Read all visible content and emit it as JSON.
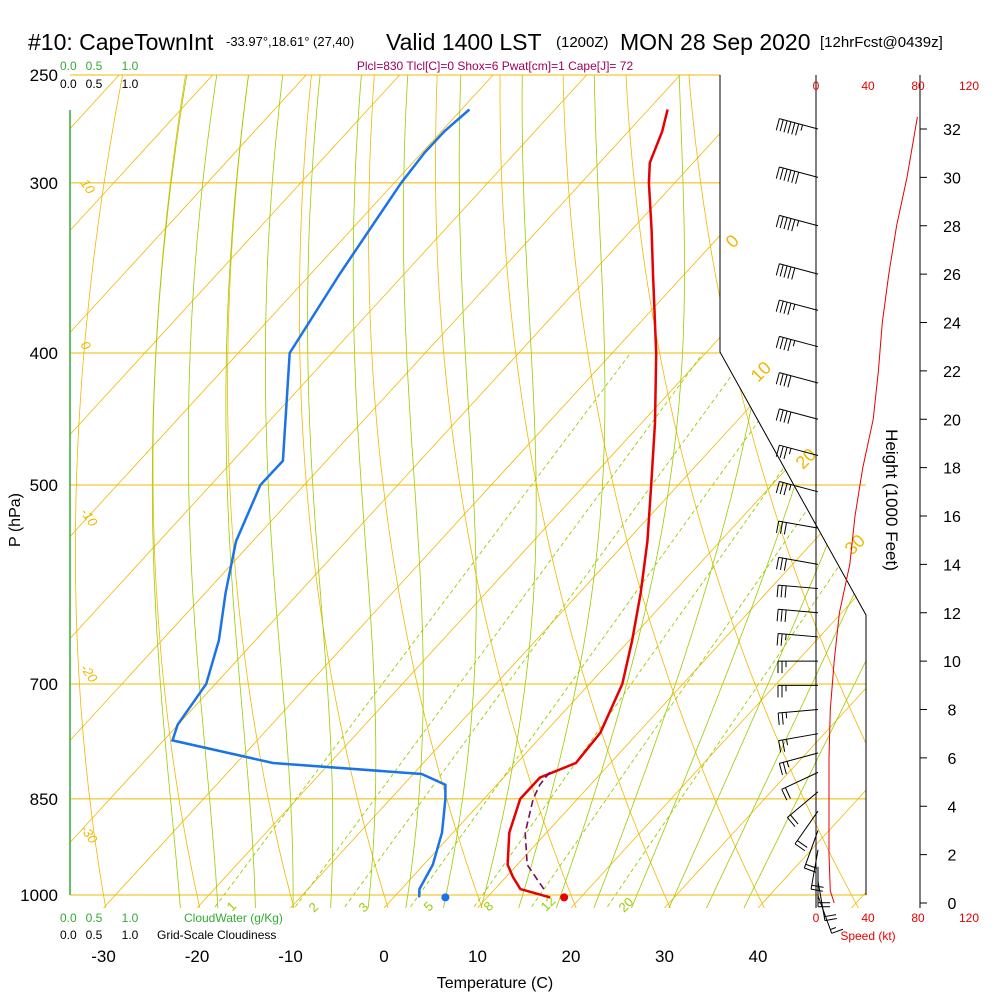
{
  "header": {
    "station": "#10: CapeTownInt",
    "coords": "-33.97°,18.61° (27,40)",
    "valid": "Valid 1400 LST",
    "utc": "(1200Z)",
    "date": "MON 28 Sep 2020",
    "forecast": "[12hrFcst@0439z]",
    "params": "Plcl=830 Tlcl[C]=0 Shox=6 Pwat[cm]=1 Cape[J]= 72"
  },
  "colors": {
    "temperature": "#e60000",
    "dewpoint": "#1a73e8",
    "parcel": "#7a0a5a",
    "isobar": "#f0b800",
    "dry_adiabat": "#f0b800",
    "moist_adiabat": "#99cc00",
    "mixing_ratio": "#99cc00",
    "cloud": "#33aa33",
    "speed": "#e60000",
    "params": "#a0005a"
  },
  "chart_data": {
    "type": "skew-t",
    "ylabel": "P (hPa)",
    "xlabel": "Temperature (C)",
    "height_axis_label": "Height (1000 Feet)",
    "speed_axis_label": "Speed (kt)",
    "y_scale": "log",
    "isobars_hpa": [
      250,
      300,
      400,
      500,
      700,
      850,
      1000
    ],
    "pressure_ticks": [
      "250",
      "300",
      "400",
      "500",
      "700",
      "850",
      "1000"
    ],
    "temp_ticks": [
      -30,
      -20,
      -10,
      0,
      10,
      20,
      30,
      40
    ],
    "height_ticks_kft": [
      0,
      2,
      4,
      6,
      8,
      10,
      12,
      14,
      16,
      18,
      20,
      22,
      24,
      26,
      28,
      30,
      32
    ],
    "speed_ticks_kt": [
      "0",
      "40",
      "80",
      "120"
    ],
    "cloud_scale": [
      "0.0",
      "0.5",
      "1.0"
    ],
    "cloud_scale_labels": {
      "cloud_water": "CloudWater (g/Kg)",
      "grid_cloud": "Grid-Scale Cloudiness"
    },
    "grid_cloud_scale": [
      "0.0",
      "0.5",
      "1.0"
    ],
    "dry_adiabat_labels": [
      "10",
      "0",
      "-10",
      "-20",
      "-30"
    ],
    "moist_adiabat_labels": [
      "0",
      "10",
      "20",
      "30"
    ],
    "mixing_ratio_labels": [
      "1",
      "2",
      "3",
      "5",
      "8",
      "12",
      "20"
    ],
    "temperature_profile": [
      {
        "p": 1004,
        "t": 18.0
      },
      {
        "p": 990,
        "t": 14.0
      },
      {
        "p": 970,
        "t": 12.0
      },
      {
        "p": 950,
        "t": 10.2
      },
      {
        "p": 900,
        "t": 7.2
      },
      {
        "p": 850,
        "t": 5.0
      },
      {
        "p": 820,
        "t": 5.0
      },
      {
        "p": 800,
        "t": 7.4
      },
      {
        "p": 760,
        "t": 7.0
      },
      {
        "p": 700,
        "t": 4.5
      },
      {
        "p": 650,
        "t": 1.2
      },
      {
        "p": 600,
        "t": -2.6
      },
      {
        "p": 550,
        "t": -7.0
      },
      {
        "p": 500,
        "t": -12.2
      },
      {
        "p": 450,
        "t": -18.0
      },
      {
        "p": 400,
        "t": -24.8
      },
      {
        "p": 350,
        "t": -33.0
      },
      {
        "p": 325,
        "t": -37.5
      },
      {
        "p": 300,
        "t": -42.5
      },
      {
        "p": 290,
        "t": -44.4
      },
      {
        "p": 275,
        "t": -46.2
      },
      {
        "p": 265,
        "t": -47.8
      }
    ],
    "dewpoint_profile": [
      {
        "p": 1004,
        "td": 4.0
      },
      {
        "p": 990,
        "td": 3.2
      },
      {
        "p": 950,
        "td": 2.2
      },
      {
        "p": 900,
        "td": 0.0
      },
      {
        "p": 850,
        "td": -3.0
      },
      {
        "p": 830,
        "td": -4.4
      },
      {
        "p": 815,
        "td": -8.0
      },
      {
        "p": 800,
        "td": -25.0
      },
      {
        "p": 770,
        "td": -38.0
      },
      {
        "p": 750,
        "td": -39.0
      },
      {
        "p": 700,
        "td": -40.0
      },
      {
        "p": 650,
        "td": -43.0
      },
      {
        "p": 600,
        "td": -47.0
      },
      {
        "p": 550,
        "td": -51.0
      },
      {
        "p": 500,
        "td": -54.0
      },
      {
        "p": 480,
        "td": -54.0
      },
      {
        "p": 400,
        "td": -64.0
      },
      {
        "p": 350,
        "td": -66.5
      },
      {
        "p": 300,
        "td": -69.0
      },
      {
        "p": 285,
        "td": -69.5
      },
      {
        "p": 275,
        "td": -69.5
      },
      {
        "p": 265,
        "td": -69.0
      }
    ],
    "parcel_path": [
      {
        "p": 990,
        "t": 16.5
      },
      {
        "p": 950,
        "t": 12.3
      },
      {
        "p": 900,
        "t": 8.9
      },
      {
        "p": 850,
        "t": 6.4
      },
      {
        "p": 830,
        "t": 5.7
      },
      {
        "p": 810,
        "t": 5.5
      }
    ],
    "surface_temperature_c": 19.5,
    "surface_dewpoint_c": 6.8,
    "wind_speed_profile": [
      {
        "h": 0.0,
        "spd": 14
      },
      {
        "h": 0.5,
        "spd": 11
      },
      {
        "h": 2.0,
        "spd": 10
      },
      {
        "h": 6.0,
        "spd": 10
      },
      {
        "h": 8.0,
        "spd": 11
      },
      {
        "h": 10.0,
        "spd": 14
      },
      {
        "h": 12.0,
        "spd": 18
      },
      {
        "h": 14.0,
        "spd": 26
      },
      {
        "h": 16.0,
        "spd": 30
      },
      {
        "h": 18.0,
        "spd": 36
      },
      {
        "h": 20.0,
        "spd": 44
      },
      {
        "h": 22.0,
        "spd": 48
      },
      {
        "h": 24.0,
        "spd": 51
      },
      {
        "h": 26.0,
        "spd": 56
      },
      {
        "h": 28.0,
        "spd": 62
      },
      {
        "h": 30.0,
        "spd": 70
      },
      {
        "h": 32.5,
        "spd": 78
      }
    ],
    "wind_barbs": [
      {
        "h": 0.3,
        "spd": 15,
        "dir": 160
      },
      {
        "h": 0.9,
        "spd": 20,
        "dir": 170
      },
      {
        "h": 1.5,
        "spd": 20,
        "dir": 180
      },
      {
        "h": 2.2,
        "spd": 20,
        "dir": 190
      },
      {
        "h": 3.0,
        "spd": 20,
        "dir": 200
      },
      {
        "h": 3.8,
        "spd": 20,
        "dir": 215
      },
      {
        "h": 4.6,
        "spd": 20,
        "dir": 230
      },
      {
        "h": 5.4,
        "spd": 20,
        "dir": 245
      },
      {
        "h": 6.2,
        "spd": 25,
        "dir": 255
      },
      {
        "h": 7.0,
        "spd": 25,
        "dir": 260
      },
      {
        "h": 8.0,
        "spd": 25,
        "dir": 265
      },
      {
        "h": 9.0,
        "spd": 25,
        "dir": 270
      },
      {
        "h": 10.0,
        "spd": 25,
        "dir": 270
      },
      {
        "h": 11.0,
        "spd": 25,
        "dir": 275
      },
      {
        "h": 12.0,
        "spd": 30,
        "dir": 275
      },
      {
        "h": 13.0,
        "spd": 30,
        "dir": 275
      },
      {
        "h": 14.0,
        "spd": 30,
        "dir": 280
      },
      {
        "h": 15.5,
        "spd": 30,
        "dir": 280
      },
      {
        "h": 17.0,
        "spd": 35,
        "dir": 285
      },
      {
        "h": 18.5,
        "spd": 35,
        "dir": 285
      },
      {
        "h": 20.0,
        "spd": 40,
        "dir": 285
      },
      {
        "h": 21.5,
        "spd": 40,
        "dir": 285
      },
      {
        "h": 23.0,
        "spd": 45,
        "dir": 285
      },
      {
        "h": 24.5,
        "spd": 45,
        "dir": 285
      },
      {
        "h": 26.0,
        "spd": 50,
        "dir": 285
      },
      {
        "h": 28.0,
        "spd": 55,
        "dir": 285
      },
      {
        "h": 30.0,
        "spd": 60,
        "dir": 285
      },
      {
        "h": 32.0,
        "spd": 65,
        "dir": 285
      }
    ],
    "grid": true
  }
}
